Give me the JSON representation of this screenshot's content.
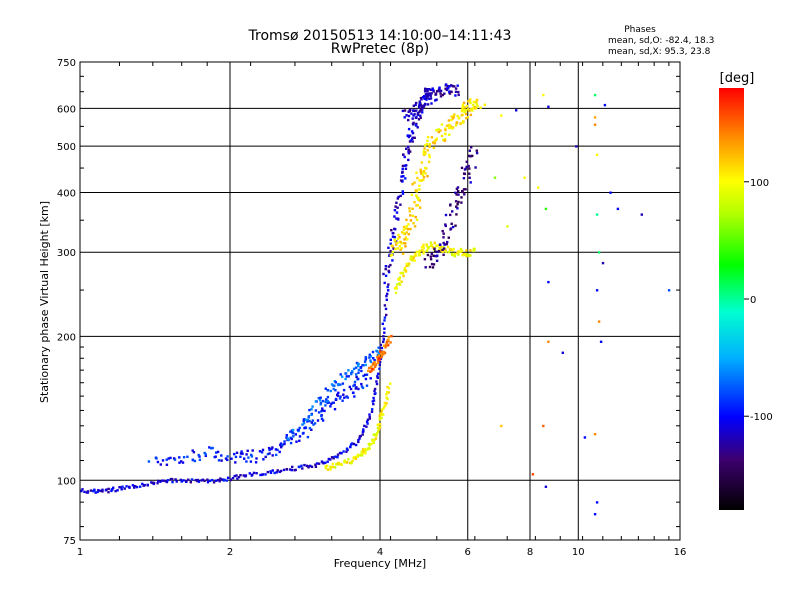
{
  "chart_data": {
    "type": "scatter",
    "title": "Tromsø 20150513 14:10:00–14:11:43",
    "subtitle": "RwPretec (8p)",
    "xlabel": "Frequency [MHz]",
    "ylabel": "Stationary phase Virtual Height [km]",
    "x_scale": "log",
    "y_scale": "log",
    "xlim": [
      1,
      16
    ],
    "ylim": [
      75,
      750
    ],
    "x_ticks": [
      1,
      2,
      4,
      6,
      8,
      10,
      16
    ],
    "x_tick_labels": [
      "1",
      "2",
      "4",
      "6",
      "8",
      "10",
      "16"
    ],
    "y_ticks": [
      75,
      100,
      200,
      300,
      400,
      500,
      600,
      750
    ],
    "y_tick_labels": [
      "75",
      "100",
      "200",
      "300",
      "400",
      "500",
      "600",
      "750"
    ],
    "grid": true,
    "stats": {
      "heading": "Phases",
      "line_o": "mean, sd,O: -82.4, 18.3",
      "line_x": "mean, sd,X: 95.3, 23.8"
    },
    "colorbar": {
      "label": "[deg]",
      "range": [
        -180,
        180
      ],
      "ticks": [
        100,
        0,
        -100
      ],
      "tick_labels": [
        "100",
        "0",
        "-100"
      ]
    },
    "traces": [
      {
        "x": [
          1.0,
          1.1,
          1.2,
          1.35,
          1.5,
          1.7,
          1.9,
          2.1,
          2.4,
          2.7,
          3.0,
          3.3,
          3.6,
          3.8,
          3.95,
          4.05,
          4.15
        ],
        "y": [
          95,
          95,
          96,
          98,
          100,
          100,
          100,
          102,
          104,
          106,
          108,
          113,
          120,
          135,
          160,
          200,
          260
        ],
        "phase": -110,
        "spread": 0.012
      },
      {
        "x": [
          4.1,
          4.2,
          4.3,
          4.4,
          4.5,
          4.6,
          4.7,
          4.8,
          4.9,
          5.0
        ],
        "y": [
          260,
          300,
          350,
          410,
          470,
          520,
          560,
          600,
          630,
          650
        ],
        "phase": -115,
        "spread": 0.03
      },
      {
        "x": [
          1.4,
          1.6,
          1.8,
          2.0,
          2.2,
          2.4,
          2.6,
          2.8,
          3.0,
          3.2,
          3.4,
          3.6,
          3.8
        ],
        "y": [
          108,
          112,
          114,
          112,
          112,
          114,
          120,
          126,
          135,
          145,
          150,
          158,
          165
        ],
        "phase": -95,
        "spread": 0.04
      },
      {
        "x": [
          2.6,
          2.8,
          3.0,
          3.2,
          3.4,
          3.6,
          3.8,
          4.0
        ],
        "y": [
          122,
          132,
          145,
          155,
          165,
          172,
          178,
          190
        ],
        "phase": -75,
        "spread": 0.03
      },
      {
        "x": [
          3.1,
          3.3,
          3.5,
          3.7,
          3.85,
          3.95,
          4.05,
          4.2
        ],
        "y": [
          106,
          108,
          110,
          114,
          120,
          128,
          140,
          160
        ],
        "phase": 100,
        "spread": 0.015
      },
      {
        "x": [
          4.3,
          4.45,
          4.6,
          4.8,
          5.0,
          5.3,
          5.6,
          5.9,
          6.2
        ],
        "y": [
          250,
          270,
          290,
          300,
          310,
          305,
          300,
          300,
          300
        ],
        "phase": 100,
        "spread": 0.025
      },
      {
        "x": [
          4.3,
          4.4,
          4.5,
          4.6,
          4.7,
          4.8,
          4.9,
          5.0,
          5.2,
          5.4,
          5.6,
          5.8,
          6.0,
          6.2,
          6.4
        ],
        "y": [
          300,
          310,
          330,
          350,
          380,
          420,
          460,
          500,
          520,
          540,
          560,
          580,
          600,
          610,
          620
        ],
        "phase": 110,
        "spread": 0.05
      },
      {
        "x": [
          5.0,
          5.2,
          5.4,
          5.6,
          5.8,
          6.0,
          6.2
        ],
        "y": [
          280,
          300,
          320,
          360,
          400,
          450,
          500
        ],
        "phase": -130,
        "spread": 0.05
      },
      {
        "x": [
          4.5,
          4.7,
          4.9,
          5.1,
          5.3,
          5.5,
          5.7
        ],
        "y": [
          580,
          600,
          620,
          640,
          650,
          660,
          650
        ],
        "phase": -120,
        "spread": 0.04
      },
      {
        "x": [
          3.8,
          3.9,
          4.0,
          4.1,
          4.2
        ],
        "y": [
          170,
          175,
          182,
          190,
          200
        ],
        "phase": 150,
        "spread": 0.02
      }
    ],
    "scatter_points": [
      {
        "x": 10.8,
        "y": 640,
        "phase": 10
      },
      {
        "x": 11.3,
        "y": 610,
        "phase": -100
      },
      {
        "x": 10.8,
        "y": 575,
        "phase": 130
      },
      {
        "x": 10.8,
        "y": 555,
        "phase": 140
      },
      {
        "x": 10.9,
        "y": 480,
        "phase": 100
      },
      {
        "x": 11.6,
        "y": 400,
        "phase": -100
      },
      {
        "x": 10.9,
        "y": 360,
        "phase": 0
      },
      {
        "x": 11.0,
        "y": 300,
        "phase": 10
      },
      {
        "x": 11.2,
        "y": 285,
        "phase": -120
      },
      {
        "x": 10.9,
        "y": 250,
        "phase": -100
      },
      {
        "x": 11.0,
        "y": 215,
        "phase": 140
      },
      {
        "x": 11.1,
        "y": 195,
        "phase": -100
      },
      {
        "x": 10.8,
        "y": 125,
        "phase": 140
      },
      {
        "x": 10.9,
        "y": 90,
        "phase": -100
      },
      {
        "x": 10.8,
        "y": 85,
        "phase": -100
      },
      {
        "x": 8.5,
        "y": 640,
        "phase": 100
      },
      {
        "x": 8.7,
        "y": 605,
        "phase": -110
      },
      {
        "x": 9.9,
        "y": 500,
        "phase": -120
      },
      {
        "x": 8.3,
        "y": 410,
        "phase": 100
      },
      {
        "x": 7.8,
        "y": 430,
        "phase": 100
      },
      {
        "x": 8.6,
        "y": 370,
        "phase": 40
      },
      {
        "x": 8.7,
        "y": 260,
        "phase": -100
      },
      {
        "x": 8.7,
        "y": 195,
        "phase": 140
      },
      {
        "x": 9.3,
        "y": 185,
        "phase": -110
      },
      {
        "x": 8.5,
        "y": 130,
        "phase": 150
      },
      {
        "x": 8.1,
        "y": 103,
        "phase": 160
      },
      {
        "x": 8.6,
        "y": 97,
        "phase": -110
      },
      {
        "x": 10.3,
        "y": 123,
        "phase": -100
      },
      {
        "x": 15.2,
        "y": 250,
        "phase": -80
      },
      {
        "x": 13.4,
        "y": 360,
        "phase": -120
      },
      {
        "x": 12.0,
        "y": 370,
        "phase": -100
      },
      {
        "x": 7.0,
        "y": 580,
        "phase": 100
      },
      {
        "x": 7.5,
        "y": 595,
        "phase": -110
      },
      {
        "x": 6.8,
        "y": 430,
        "phase": 60
      },
      {
        "x": 7.2,
        "y": 340,
        "phase": 90
      },
      {
        "x": 7.0,
        "y": 130,
        "phase": 120
      }
    ]
  }
}
